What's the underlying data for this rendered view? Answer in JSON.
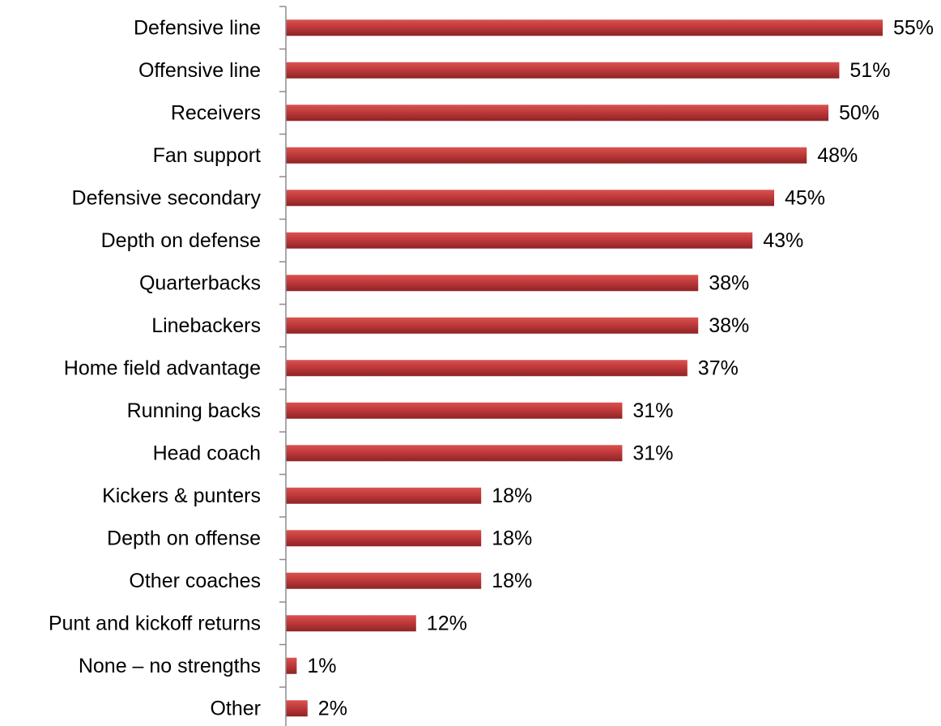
{
  "chart_data": {
    "type": "bar",
    "orientation": "horizontal",
    "categories": [
      "Defensive line",
      "Offensive line",
      "Receivers",
      "Fan support",
      "Defensive secondary",
      "Depth on defense",
      "Quarterbacks",
      "Linebackers",
      "Home field advantage",
      "Running backs",
      "Head coach",
      "Kickers & punters",
      "Depth on offense",
      "Other coaches",
      "Punt and kickoff returns",
      "None – no strengths",
      "Other"
    ],
    "values": [
      55,
      51,
      50,
      48,
      45,
      43,
      38,
      38,
      37,
      31,
      31,
      18,
      18,
      18,
      12,
      1,
      2
    ],
    "value_labels": [
      "55%",
      "51%",
      "50%",
      "48%",
      "45%",
      "43%",
      "38%",
      "38%",
      "37%",
      "31%",
      "31%",
      "18%",
      "18%",
      "18%",
      "12%",
      "1%",
      "2%"
    ],
    "xlim": [
      0,
      55
    ],
    "grid": false,
    "legend": "none",
    "bar_color": "#c0393b"
  }
}
